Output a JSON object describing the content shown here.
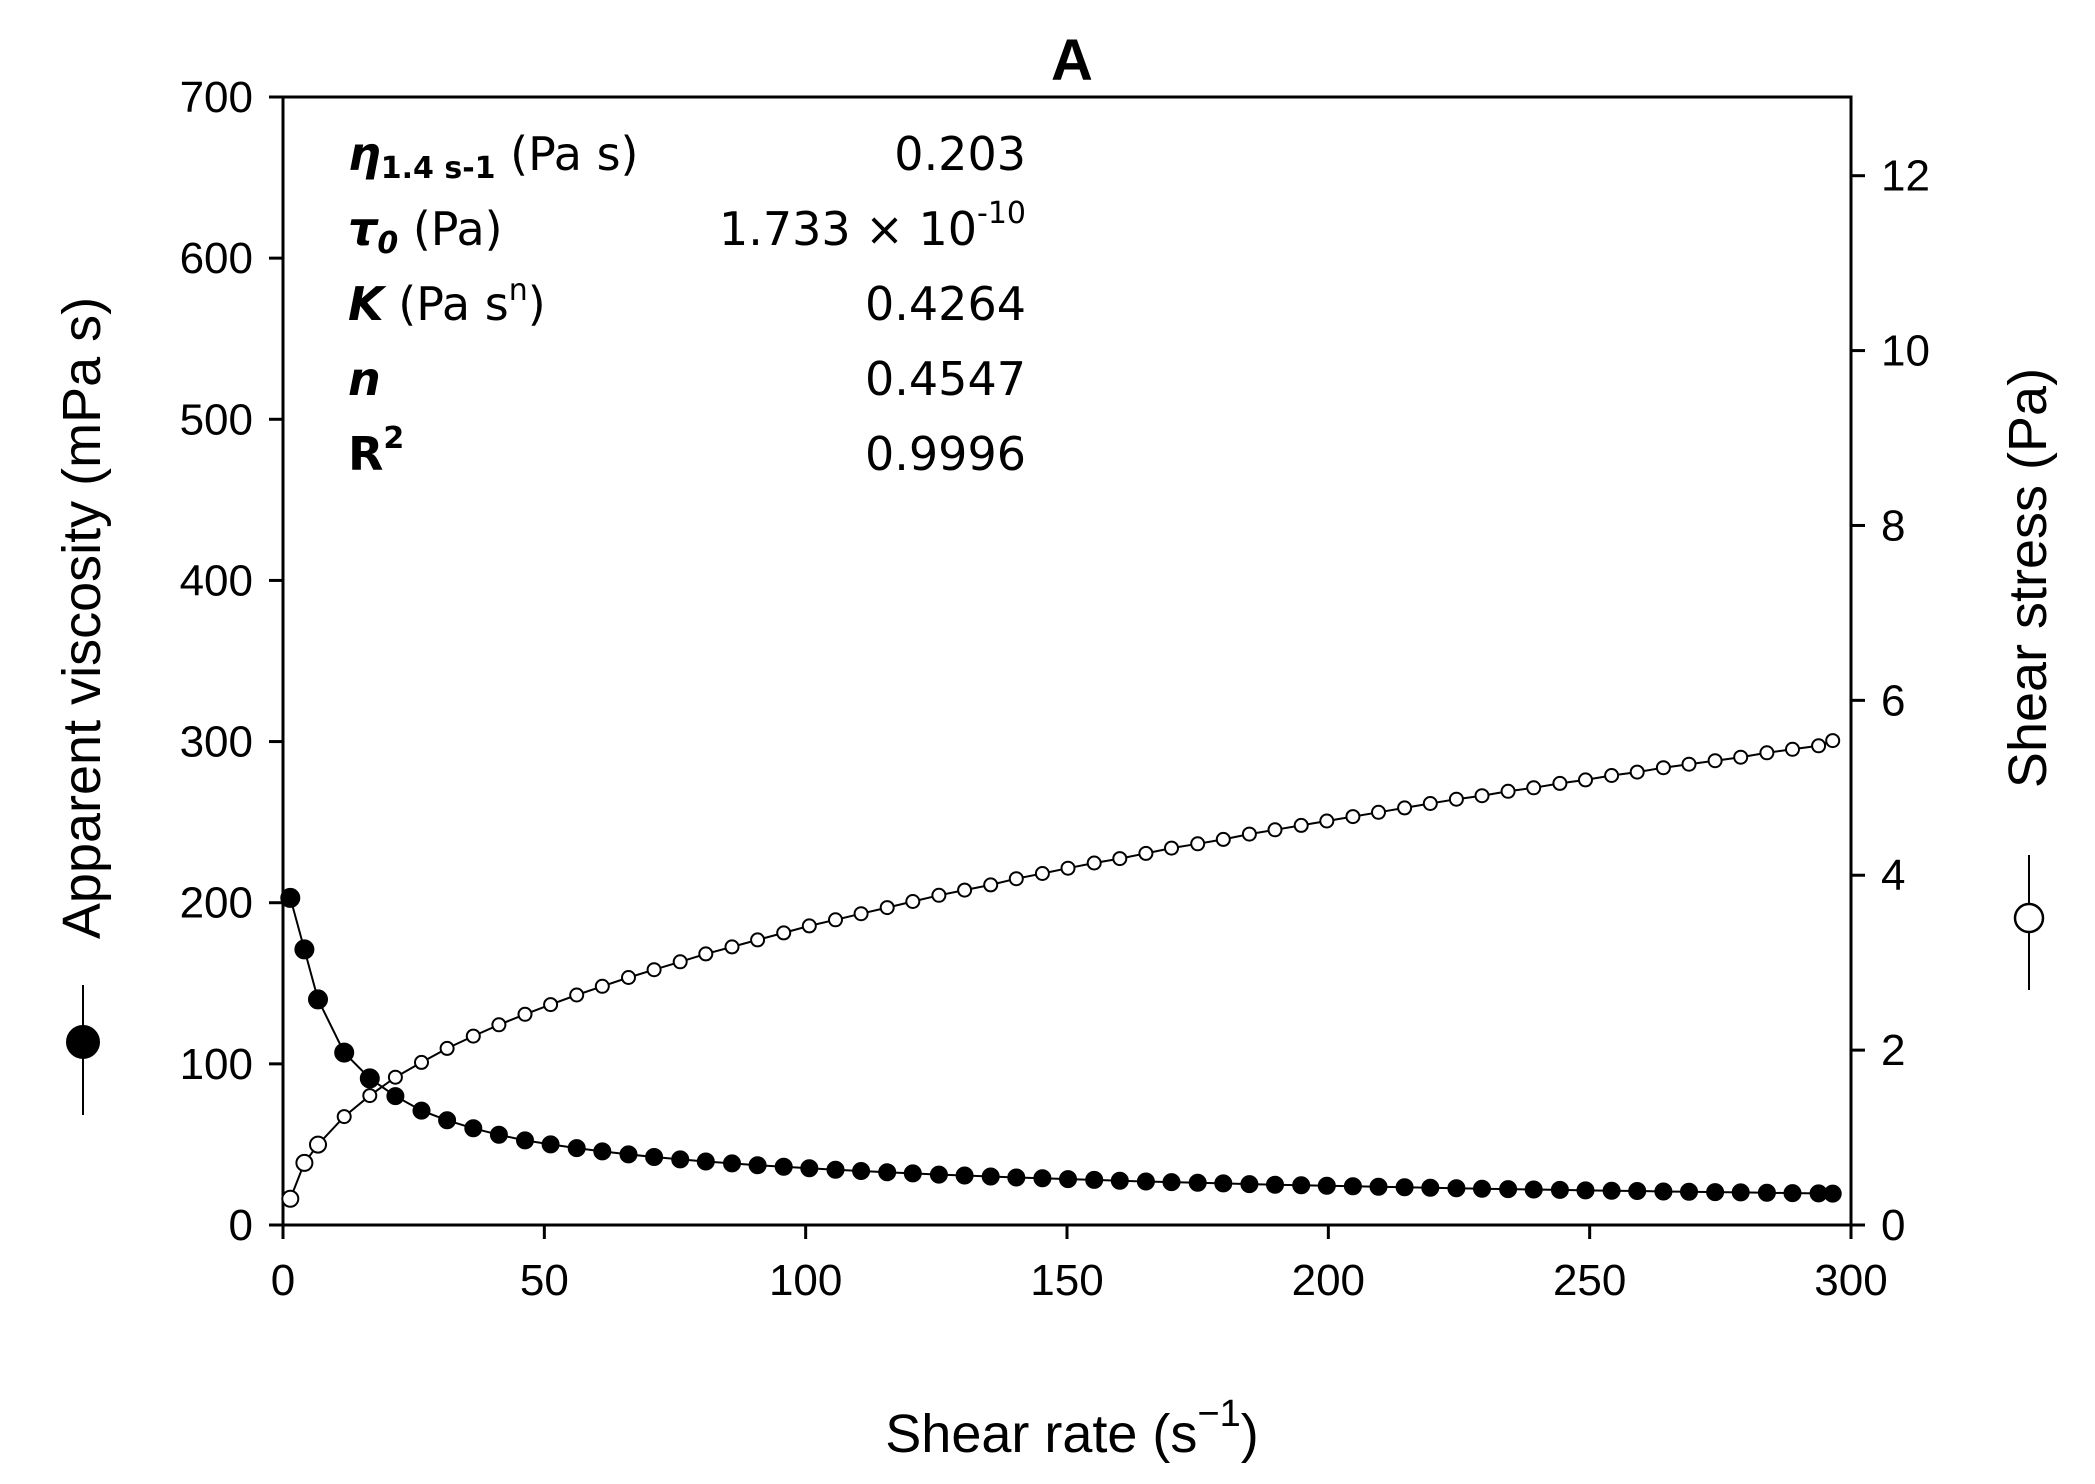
{
  "chart_data": {
    "type": "scatter",
    "title": "A",
    "xlabel": "Shear rate (s",
    "xlabel_sup": "−1",
    "xlabel_close": ")",
    "ylabel_left": "Apparent viscosity (mPa s)",
    "ylabel_right": "Shear stress (Pa)",
    "xlim": [
      0,
      300
    ],
    "ylim_left": [
      0,
      700
    ],
    "ylim_right": [
      0,
      12.9
    ],
    "xticks": [
      "0",
      "50",
      "100",
      "150",
      "200",
      "250",
      "300"
    ],
    "yticks_left": [
      "0",
      "100",
      "200",
      "300",
      "400",
      "500",
      "600",
      "700"
    ],
    "yticks_right": [
      "0",
      "2",
      "4",
      "6",
      "8",
      "10",
      "12"
    ],
    "x": [
      1.4,
      4.1,
      6.7,
      11.7,
      16.6,
      21.5,
      26.5,
      31.4,
      36.4,
      41.3,
      46.3,
      51.2,
      56.2,
      61.1,
      66.1,
      71.0,
      76.0,
      80.9,
      85.9,
      90.8,
      95.8,
      100.7,
      105.7,
      110.6,
      115.6,
      120.5,
      125.5,
      130.4,
      135.4,
      140.3,
      145.3,
      150.2,
      155.2,
      160.1,
      165.1,
      170.0,
      175.0,
      179.9,
      184.9,
      189.8,
      194.8,
      199.7,
      204.7,
      209.6,
      214.6,
      219.5,
      224.5,
      229.4,
      234.4,
      239.3,
      244.3,
      249.2,
      254.2,
      259.1,
      264.1,
      269.0,
      274.0,
      278.9,
      283.9,
      288.8,
      293.8,
      296.5
    ],
    "series": [
      {
        "name": "Apparent viscosity",
        "axis": "left",
        "marker": "filled-circle",
        "values": [
          203,
          171,
          140,
          107,
          91,
          80,
          71,
          65,
          60,
          56,
          52.5,
          50,
          47.7,
          45.7,
          43.8,
          42.2,
          40.7,
          39.4,
          38.2,
          37.1,
          36.1,
          35.2,
          34.3,
          33.5,
          32.7,
          32.0,
          31.3,
          30.7,
          30.1,
          29.5,
          29.0,
          28.5,
          28.0,
          27.5,
          27.0,
          26.6,
          26.2,
          25.8,
          25.4,
          25.0,
          24.7,
          24.3,
          24.0,
          23.7,
          23.4,
          23.1,
          22.8,
          22.5,
          22.3,
          22.0,
          21.8,
          21.5,
          21.3,
          21.1,
          20.8,
          20.6,
          20.4,
          20.2,
          20.0,
          19.8,
          19.6,
          19.5
        ]
      },
      {
        "name": "Shear stress",
        "axis": "right",
        "marker": "open-circle",
        "values": [
          0.3,
          0.71,
          0.92,
          1.24,
          1.48,
          1.69,
          1.86,
          2.02,
          2.16,
          2.29,
          2.41,
          2.52,
          2.63,
          2.73,
          2.83,
          2.92,
          3.01,
          3.1,
          3.18,
          3.26,
          3.34,
          3.42,
          3.49,
          3.56,
          3.63,
          3.7,
          3.77,
          3.83,
          3.89,
          3.96,
          4.02,
          4.08,
          4.14,
          4.19,
          4.25,
          4.31,
          4.36,
          4.41,
          4.47,
          4.52,
          4.57,
          4.62,
          4.67,
          4.72,
          4.77,
          4.82,
          4.87,
          4.91,
          4.96,
          5.0,
          5.05,
          5.09,
          5.14,
          5.18,
          5.23,
          5.27,
          5.31,
          5.35,
          5.4,
          5.44,
          5.48,
          5.54
        ]
      }
    ],
    "parameters": [
      {
        "symbol": "η",
        "subscript": "1.4 s-1",
        "unit": " (Pa s)",
        "value": "0.203"
      },
      {
        "symbol": "τ",
        "subscript": "0",
        "unit": " (Pa)",
        "value": "1.733 × 10",
        "value_exp": "-10"
      },
      {
        "symbol": "K",
        "unit": " (Pa s",
        "unit_sup": "n",
        "unit_close": ")",
        "value": "0.4264"
      },
      {
        "symbol": "n",
        "value": "0.4547"
      },
      {
        "symbol": "R",
        "symbol_sup": "2",
        "value": "0.9996"
      }
    ],
    "grid": false,
    "legend": "axis-title markers"
  }
}
